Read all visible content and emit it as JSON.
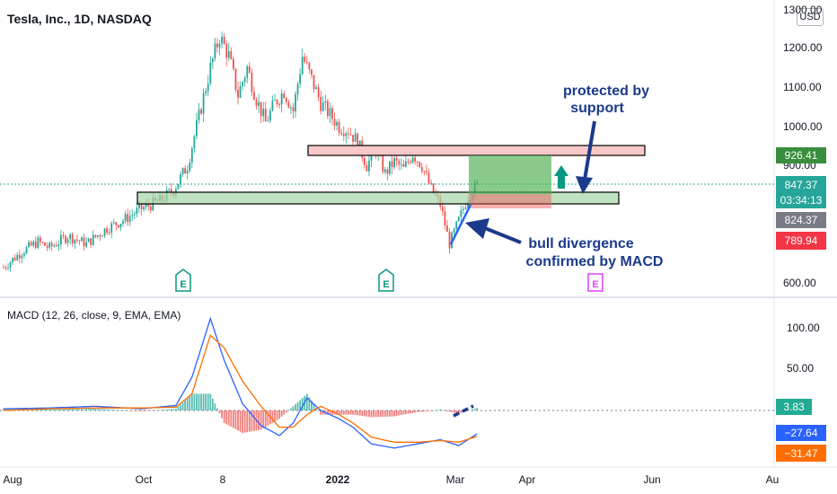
{
  "title": "Tesla, Inc., 1D, NASDAQ",
  "currency_button": "USD",
  "colors": {
    "up": "#26a69a",
    "down": "#ef5350",
    "price_tag_blue": "#2962ff",
    "annotation": "#1b3a8c",
    "macd_line": "#2962ff",
    "signal_line": "#ff6d00",
    "support_zone": "#a5d6a7",
    "resistance_zone": "#f8c8c8",
    "target_box": "#4caf50",
    "stop_box": "#ef9a9a",
    "earnings_green": "#089981",
    "earnings_pink": "#e040fb"
  },
  "price_axis": {
    "ticks": [
      "1300.00",
      "1200.00",
      "1100.00",
      "1000.00",
      "900.00",
      "600.00"
    ],
    "labels": [
      {
        "text": "926.41",
        "color": "#388e3c",
        "text_color": "#ffffff"
      },
      {
        "text": "847.37",
        "sub": "03:34:13",
        "color": "#26a69a",
        "text_color": "#ffffff"
      },
      {
        "text": "824.37",
        "color": "#787b86",
        "text_color": "#ffffff"
      },
      {
        "text": "789.94",
        "color": "#f23645",
        "text_color": "#ffffff"
      }
    ]
  },
  "macd_axis": {
    "ticks": [
      "100.00",
      "50.00"
    ],
    "labels": [
      {
        "text": "3.83",
        "color": "#22ab94"
      },
      {
        "text": "−27.64",
        "color": "#2962ff"
      },
      {
        "text": "−31.47",
        "color": "#ff6d00"
      }
    ]
  },
  "time_axis": [
    "Aug",
    "Oct",
    "8",
    "2022",
    "Mar",
    "Apr",
    "Jun",
    "Au"
  ],
  "annotations": {
    "protected": [
      "protected by",
      "support"
    ],
    "divergence": [
      "bull divergence",
      "confirmed by MACD"
    ]
  },
  "earnings_marker": "E",
  "macd_title": "MACD (12, 26, close, 9, EMA, EMA)",
  "chart_data": {
    "type": "candlestick",
    "title": "Tesla, Inc., 1D, NASDAQ",
    "ylim": [
      600,
      1300
    ],
    "key_levels": {
      "resistance": 926.41,
      "last_price": 847.37,
      "entry": 824.37,
      "stop": 789.94
    },
    "zones": {
      "resistance_band": [
        915,
        935
      ],
      "support_band": [
        820,
        850
      ]
    },
    "price_path": [
      [
        0,
        640
      ],
      [
        8,
        680
      ],
      [
        15,
        705
      ],
      [
        20,
        690
      ],
      [
        28,
        720
      ],
      [
        36,
        700
      ],
      [
        45,
        740
      ],
      [
        52,
        760
      ],
      [
        60,
        790
      ],
      [
        68,
        810
      ],
      [
        74,
        838
      ],
      [
        80,
        900
      ],
      [
        86,
        1050
      ],
      [
        90,
        1150
      ],
      [
        94,
        1230
      ],
      [
        98,
        1180
      ],
      [
        102,
        1080
      ],
      [
        106,
        1150
      ],
      [
        110,
        1070
      ],
      [
        114,
        1010
      ],
      [
        118,
        1060
      ],
      [
        122,
        1090
      ],
      [
        126,
        1040
      ],
      [
        130,
        1180
      ],
      [
        134,
        1120
      ],
      [
        138,
        1060
      ],
      [
        142,
        1030
      ],
      [
        146,
        1000
      ],
      [
        150,
        990
      ],
      [
        154,
        960
      ],
      [
        158,
        900
      ],
      [
        162,
        940
      ],
      [
        166,
        880
      ],
      [
        170,
        910
      ],
      [
        174,
        890
      ],
      [
        178,
        930
      ],
      [
        182,
        900
      ],
      [
        186,
        840
      ],
      [
        190,
        800
      ],
      [
        194,
        700
      ],
      [
        198,
        760
      ],
      [
        202,
        820
      ],
      [
        206,
        850
      ]
    ],
    "macd": {
      "macd_line": [
        [
          0,
          2
        ],
        [
          20,
          3
        ],
        [
          40,
          5
        ],
        [
          60,
          2
        ],
        [
          75,
          6
        ],
        [
          82,
          40
        ],
        [
          90,
          110
        ],
        [
          96,
          60
        ],
        [
          104,
          8
        ],
        [
          112,
          -18
        ],
        [
          120,
          -30
        ],
        [
          126,
          -15
        ],
        [
          132,
          15
        ],
        [
          138,
          0
        ],
        [
          146,
          -10
        ],
        [
          152,
          -20
        ],
        [
          160,
          -40
        ],
        [
          170,
          -45
        ],
        [
          180,
          -40
        ],
        [
          190,
          -35
        ],
        [
          198,
          -42
        ],
        [
          206,
          -28
        ]
      ],
      "signal_line": [
        [
          0,
          0
        ],
        [
          20,
          2
        ],
        [
          40,
          3
        ],
        [
          60,
          3
        ],
        [
          75,
          4
        ],
        [
          82,
          20
        ],
        [
          90,
          90
        ],
        [
          96,
          75
        ],
        [
          104,
          35
        ],
        [
          112,
          5
        ],
        [
          120,
          -20
        ],
        [
          126,
          -20
        ],
        [
          132,
          -5
        ],
        [
          138,
          5
        ],
        [
          146,
          -5
        ],
        [
          152,
          -15
        ],
        [
          160,
          -32
        ],
        [
          170,
          -38
        ],
        [
          180,
          -38
        ],
        [
          190,
          -36
        ],
        [
          198,
          -38
        ],
        [
          206,
          -31
        ]
      ]
    }
  }
}
